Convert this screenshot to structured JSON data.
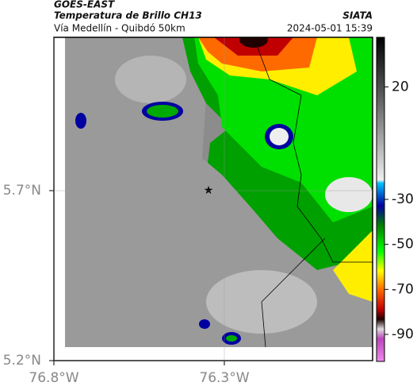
{
  "header": {
    "source": "GOES-EAST",
    "title": "Temperatura de Brillo CH13",
    "subtitle": "Vía Medellín - Quibdó 50km",
    "agency": "SIATA",
    "datetime": "2024-05-01 15:39"
  },
  "map": {
    "xlim": [
      -76.8,
      -75.865
    ],
    "ylim": [
      5.2,
      6.151
    ],
    "xticks": [
      {
        "value": -76.8,
        "label": "76.8°W"
      },
      {
        "value": -76.3,
        "label": "76.3°W"
      }
    ],
    "yticks": [
      {
        "value": 5.2,
        "label": "5.2°N"
      },
      {
        "value": 5.7,
        "label": "5.7°N"
      }
    ]
  },
  "colorbar": {
    "lim": [
      -102,
      42
    ],
    "ticks": [
      20,
      -30,
      -50,
      -70,
      -90
    ]
  }
}
